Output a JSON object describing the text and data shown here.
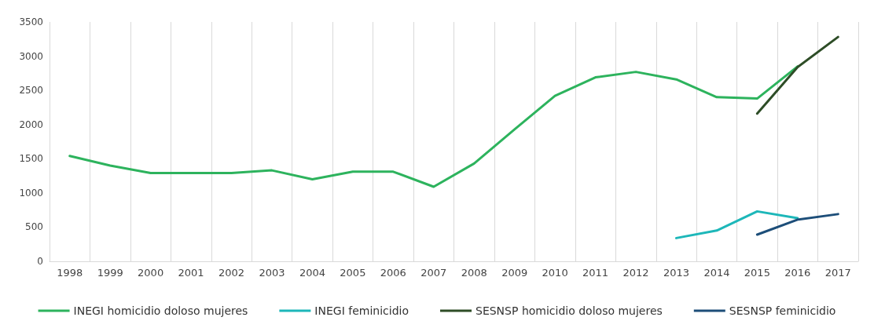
{
  "chart_data": {
    "type": "line",
    "categories": [
      "1998",
      "1999",
      "2000",
      "2001",
      "2002",
      "2003",
      "2004",
      "2005",
      "2006",
      "2007",
      "2008",
      "2009",
      "2010",
      "2011",
      "2012",
      "2013",
      "2014",
      "2015",
      "2016",
      "2017"
    ],
    "series": [
      {
        "name": "INEGI homicidio doloso mujeres",
        "color": "#2db35d",
        "values": [
          1540,
          1400,
          1290,
          1290,
          1290,
          1330,
          1200,
          1310,
          1310,
          1090,
          1430,
          1930,
          2420,
          2690,
          2770,
          2660,
          2400,
          2380,
          2850,
          null
        ]
      },
      {
        "name": "INEGI feminicidio",
        "color": "#1db7b9",
        "values": [
          null,
          null,
          null,
          null,
          null,
          null,
          null,
          null,
          null,
          null,
          null,
          null,
          null,
          null,
          null,
          340,
          450,
          730,
          630,
          null
        ]
      },
      {
        "name": "SESNSP homicidio doloso mujeres",
        "color": "#2e4d27",
        "values": [
          null,
          null,
          null,
          null,
          null,
          null,
          null,
          null,
          null,
          null,
          null,
          null,
          null,
          null,
          null,
          null,
          null,
          2160,
          2840,
          3280
        ]
      },
      {
        "name": "SESNSP feminicidio",
        "color": "#1d4e79",
        "values": [
          null,
          null,
          null,
          null,
          null,
          null,
          null,
          null,
          null,
          null,
          null,
          null,
          null,
          null,
          null,
          null,
          null,
          390,
          610,
          690
        ]
      }
    ],
    "ylim": [
      0,
      3500
    ],
    "yticks": [
      0,
      500,
      1000,
      1500,
      2000,
      2500,
      3000,
      3500
    ],
    "grid": "x",
    "legend": "bottom",
    "marker": "none",
    "line_style": "solid"
  }
}
